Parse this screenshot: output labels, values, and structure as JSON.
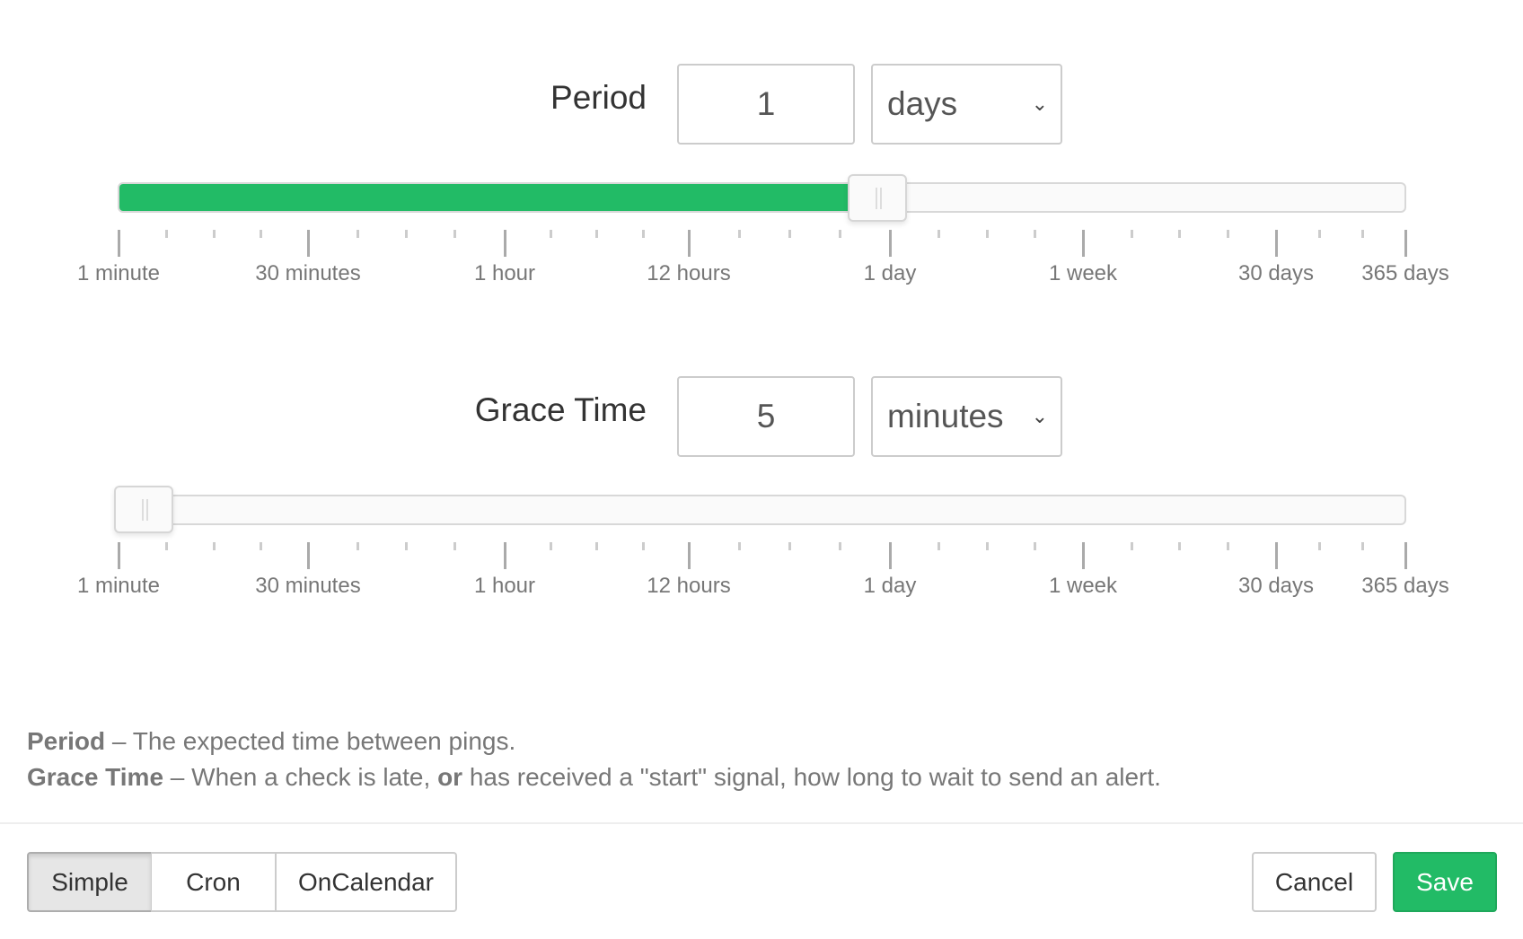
{
  "period": {
    "label": "Period",
    "value": "1",
    "unit": "days",
    "slider_fraction": 0.5965
  },
  "grace": {
    "label": "Grace Time",
    "value": "5",
    "unit": "minutes",
    "slider_fraction": 0.0
  },
  "tick_labels": [
    "1 minute",
    "30 minutes",
    "1 hour",
    "12 hours",
    "1 day",
    "1 week",
    "30 days",
    "365 days"
  ],
  "help": {
    "period_term": "Period",
    "period_text": " – The expected time between pings.",
    "grace_term": "Grace Time",
    "grace_text_1": " – When a check is late, ",
    "grace_or": "or",
    "grace_text_2": " has received a \"start\" signal, how long to wait to send an alert."
  },
  "modes": {
    "simple": "Simple",
    "cron": "Cron",
    "oncalendar": "OnCalendar",
    "active": "Simple"
  },
  "actions": {
    "cancel": "Cancel",
    "save": "Save"
  },
  "colors": {
    "accent": "#22bb66"
  }
}
